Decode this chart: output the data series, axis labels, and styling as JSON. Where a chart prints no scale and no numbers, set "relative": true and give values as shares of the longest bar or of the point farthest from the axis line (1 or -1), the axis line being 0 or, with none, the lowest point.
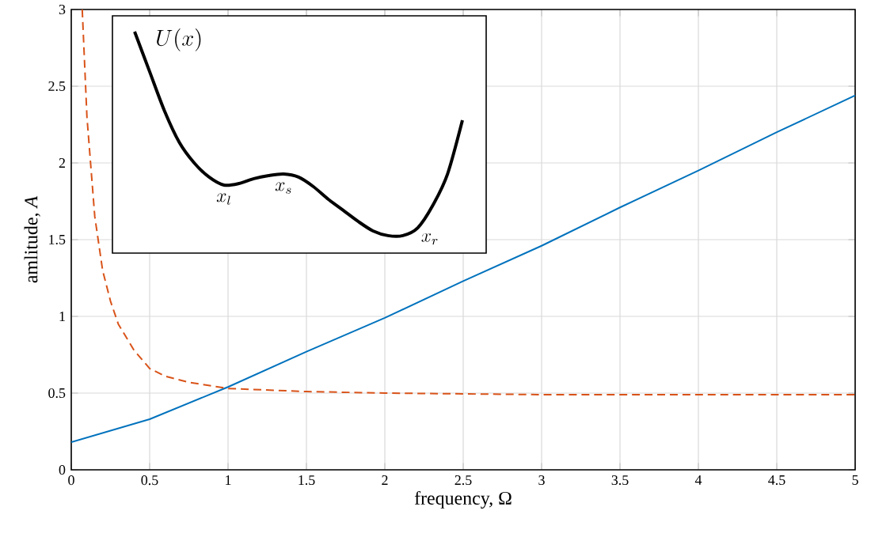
{
  "chart_data": [
    {
      "type": "line",
      "xlabel": "frequency, Ω",
      "ylabel": "amlitude, *A*",
      "xlim": [
        0,
        5
      ],
      "ylim": [
        0,
        3
      ],
      "xticks": [
        0,
        0.5,
        1,
        1.5,
        2,
        2.5,
        3,
        3.5,
        4,
        4.5,
        5
      ],
      "yticks": [
        0,
        0.5,
        1,
        1.5,
        2,
        2.5,
        3
      ],
      "grid": true,
      "series": [
        {
          "color": "#0072bd",
          "line_style": "solid",
          "x": [
            0,
            0.5,
            1,
            1.5,
            2,
            2.5,
            3,
            3.5,
            4,
            4.5,
            5
          ],
          "values": [
            0.18,
            0.33,
            0.54,
            0.77,
            0.99,
            1.23,
            1.46,
            1.71,
            1.95,
            2.2,
            2.44
          ]
        },
        {
          "color": "#d95319",
          "line_style": "dashed",
          "x": [
            0.07,
            0.1,
            0.15,
            0.2,
            0.25,
            0.3,
            0.4,
            0.5,
            0.6,
            0.75,
            1,
            1.25,
            1.5,
            2,
            3,
            4,
            5
          ],
          "values": [
            3,
            2.3,
            1.65,
            1.3,
            1.1,
            0.95,
            0.78,
            0.66,
            0.61,
            0.57,
            0.53,
            0.52,
            0.51,
            0.5,
            0.49,
            0.49,
            0.49
          ]
        }
      ]
    },
    {
      "type": "line",
      "relative": true,
      "title": "U(x)",
      "annotations": [
        "x_l",
        "x_s",
        "x_r"
      ],
      "categories": [
        null,
        null,
        null,
        null,
        null,
        null,
        null,
        null,
        null,
        null,
        null,
        null,
        null,
        null,
        null,
        null,
        null,
        null,
        null,
        null,
        null,
        null,
        null
      ],
      "series": [
        {
          "color": "#000000",
          "line_style": "solid",
          "values": [
            1,
            0.821,
            0.643,
            0.5,
            0.407,
            0.343,
            0.307,
            0.314,
            0.336,
            0.35,
            0.357,
            0.343,
            0.3,
            0.243,
            0.193,
            0.143,
            0.1,
            0.079,
            0.079,
            0.114,
            0.214,
            0.357,
            0.6
          ]
        }
      ]
    }
  ]
}
